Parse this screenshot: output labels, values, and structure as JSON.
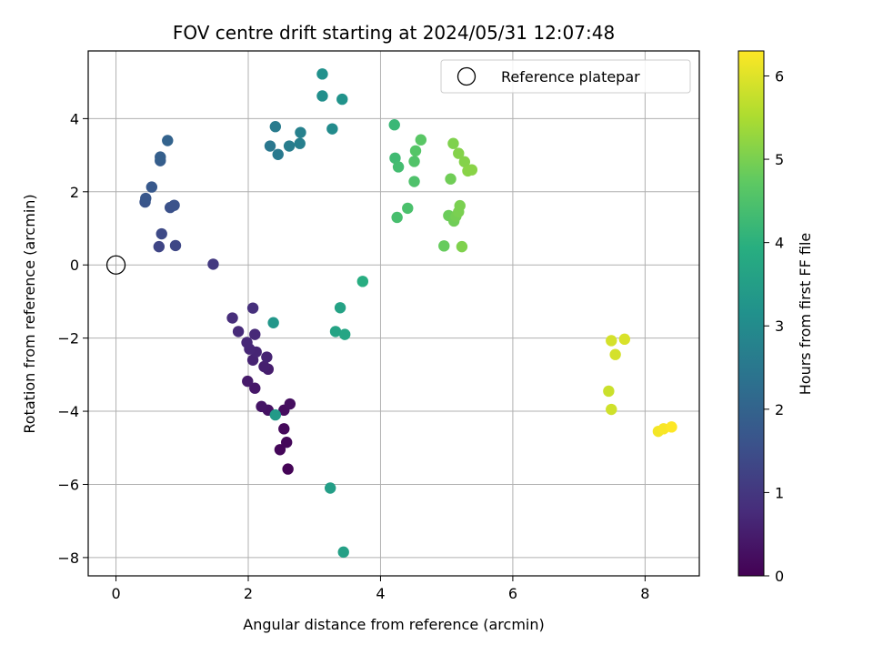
{
  "chart_data": {
    "type": "scatter",
    "title": "FOV centre drift starting at 2024/05/31 12:07:48",
    "xlabel": "Angular distance from reference (arcmin)",
    "ylabel": "Rotation from reference (arcmin)",
    "xlim": [
      -0.42,
      8.82
    ],
    "ylim": [
      -8.5,
      5.85
    ],
    "x_ticks": [
      0,
      2,
      4,
      6,
      8
    ],
    "y_ticks": [
      -8,
      -6,
      -4,
      -2,
      0,
      2,
      4
    ],
    "grid": true,
    "legend": {
      "placement": "top-right",
      "entries": [
        {
          "label": "Reference platepar",
          "marker": "open-circle"
        }
      ]
    },
    "reference_point": {
      "x": 0,
      "y": 0
    },
    "colorbar": {
      "label": "Hours from first FF file",
      "min": 0,
      "max": 6.3,
      "ticks": [
        0,
        1,
        2,
        3,
        4,
        5,
        6
      ],
      "colormap": "viridis"
    },
    "points": [
      {
        "x": 2.6,
        "y": -5.58,
        "c": 0.05
      },
      {
        "x": 2.48,
        "y": -5.05,
        "c": 0.1
      },
      {
        "x": 2.58,
        "y": -4.85,
        "c": 0.12
      },
      {
        "x": 2.54,
        "y": -4.48,
        "c": 0.15
      },
      {
        "x": 2.54,
        "y": -3.97,
        "c": 0.2
      },
      {
        "x": 2.63,
        "y": -3.8,
        "c": 0.25
      },
      {
        "x": 2.3,
        "y": -3.97,
        "c": 0.3
      },
      {
        "x": 2.2,
        "y": -3.87,
        "c": 0.35
      },
      {
        "x": 2.1,
        "y": -3.37,
        "c": 0.4
      },
      {
        "x": 1.99,
        "y": -3.18,
        "c": 0.45
      },
      {
        "x": 2.3,
        "y": -2.85,
        "c": 0.5
      },
      {
        "x": 2.24,
        "y": -2.78,
        "c": 0.55
      },
      {
        "x": 2.07,
        "y": -2.6,
        "c": 0.6
      },
      {
        "x": 2.28,
        "y": -2.52,
        "c": 0.62
      },
      {
        "x": 2.12,
        "y": -2.38,
        "c": 0.65
      },
      {
        "x": 2.02,
        "y": -2.3,
        "c": 0.68
      },
      {
        "x": 1.98,
        "y": -2.12,
        "c": 0.7
      },
      {
        "x": 2.1,
        "y": -1.9,
        "c": 0.72
      },
      {
        "x": 1.85,
        "y": -1.82,
        "c": 0.75
      },
      {
        "x": 1.76,
        "y": -1.45,
        "c": 0.8
      },
      {
        "x": 2.07,
        "y": -1.18,
        "c": 0.85
      },
      {
        "x": 1.47,
        "y": 0.02,
        "c": 1.05
      },
      {
        "x": 0.65,
        "y": 0.5,
        "c": 1.3
      },
      {
        "x": 0.9,
        "y": 0.53,
        "c": 1.35
      },
      {
        "x": 0.69,
        "y": 0.85,
        "c": 1.4
      },
      {
        "x": 0.82,
        "y": 1.57,
        "c": 1.55
      },
      {
        "x": 0.88,
        "y": 1.63,
        "c": 1.6
      },
      {
        "x": 0.44,
        "y": 1.72,
        "c": 1.65
      },
      {
        "x": 0.45,
        "y": 1.82,
        "c": 1.7
      },
      {
        "x": 0.54,
        "y": 2.13,
        "c": 1.75
      },
      {
        "x": 0.67,
        "y": 2.85,
        "c": 1.85
      },
      {
        "x": 0.67,
        "y": 2.95,
        "c": 1.9
      },
      {
        "x": 0.78,
        "y": 3.4,
        "c": 2.0
      },
      {
        "x": 2.33,
        "y": 3.25,
        "c": 2.5
      },
      {
        "x": 2.45,
        "y": 3.02,
        "c": 2.55
      },
      {
        "x": 2.41,
        "y": 3.78,
        "c": 2.6
      },
      {
        "x": 2.62,
        "y": 3.25,
        "c": 2.65
      },
      {
        "x": 2.78,
        "y": 3.32,
        "c": 2.7
      },
      {
        "x": 2.79,
        "y": 3.62,
        "c": 2.75
      },
      {
        "x": 3.27,
        "y": 3.72,
        "c": 3.0
      },
      {
        "x": 3.12,
        "y": 4.62,
        "c": 3.1
      },
      {
        "x": 3.12,
        "y": 5.22,
        "c": 3.15
      },
      {
        "x": 3.42,
        "y": 4.53,
        "c": 3.2
      },
      {
        "x": 2.38,
        "y": -1.58,
        "c": 3.3
      },
      {
        "x": 2.41,
        "y": -4.1,
        "c": 3.4
      },
      {
        "x": 3.24,
        "y": -6.1,
        "c": 3.5
      },
      {
        "x": 3.44,
        "y": -7.85,
        "c": 3.55
      },
      {
        "x": 3.39,
        "y": -1.17,
        "c": 3.6
      },
      {
        "x": 3.32,
        "y": -1.82,
        "c": 3.65
      },
      {
        "x": 3.46,
        "y": -1.9,
        "c": 3.7
      },
      {
        "x": 3.73,
        "y": -0.45,
        "c": 3.9
      },
      {
        "x": 4.21,
        "y": 3.83,
        "c": 4.2
      },
      {
        "x": 4.22,
        "y": 2.92,
        "c": 4.3
      },
      {
        "x": 4.27,
        "y": 2.68,
        "c": 4.35
      },
      {
        "x": 4.25,
        "y": 1.3,
        "c": 4.4
      },
      {
        "x": 4.41,
        "y": 1.55,
        "c": 4.45
      },
      {
        "x": 4.51,
        "y": 2.28,
        "c": 4.5
      },
      {
        "x": 4.51,
        "y": 2.83,
        "c": 4.55
      },
      {
        "x": 4.53,
        "y": 3.12,
        "c": 4.6
      },
      {
        "x": 4.61,
        "y": 3.42,
        "c": 4.65
      },
      {
        "x": 4.96,
        "y": 0.52,
        "c": 4.8
      },
      {
        "x": 5.03,
        "y": 1.35,
        "c": 4.85
      },
      {
        "x": 5.06,
        "y": 2.35,
        "c": 4.9
      },
      {
        "x": 5.11,
        "y": 1.2,
        "c": 4.9
      },
      {
        "x": 5.14,
        "y": 1.33,
        "c": 4.95
      },
      {
        "x": 5.18,
        "y": 1.45,
        "c": 5.0
      },
      {
        "x": 5.2,
        "y": 1.62,
        "c": 5.0
      },
      {
        "x": 5.23,
        "y": 0.5,
        "c": 5.05
      },
      {
        "x": 5.1,
        "y": 3.32,
        "c": 5.05
      },
      {
        "x": 5.18,
        "y": 3.05,
        "c": 5.1
      },
      {
        "x": 5.27,
        "y": 2.82,
        "c": 5.1
      },
      {
        "x": 5.32,
        "y": 2.57,
        "c": 5.15
      },
      {
        "x": 5.38,
        "y": 2.6,
        "c": 5.15
      },
      {
        "x": 7.45,
        "y": -3.45,
        "c": 5.8
      },
      {
        "x": 7.49,
        "y": -3.95,
        "c": 5.85
      },
      {
        "x": 7.49,
        "y": -2.07,
        "c": 5.9
      },
      {
        "x": 7.55,
        "y": -2.45,
        "c": 5.9
      },
      {
        "x": 7.69,
        "y": -2.03,
        "c": 5.95
      },
      {
        "x": 8.2,
        "y": -4.55,
        "c": 6.2
      },
      {
        "x": 8.28,
        "y": -4.48,
        "c": 6.25
      },
      {
        "x": 8.4,
        "y": -4.43,
        "c": 6.3
      }
    ]
  }
}
